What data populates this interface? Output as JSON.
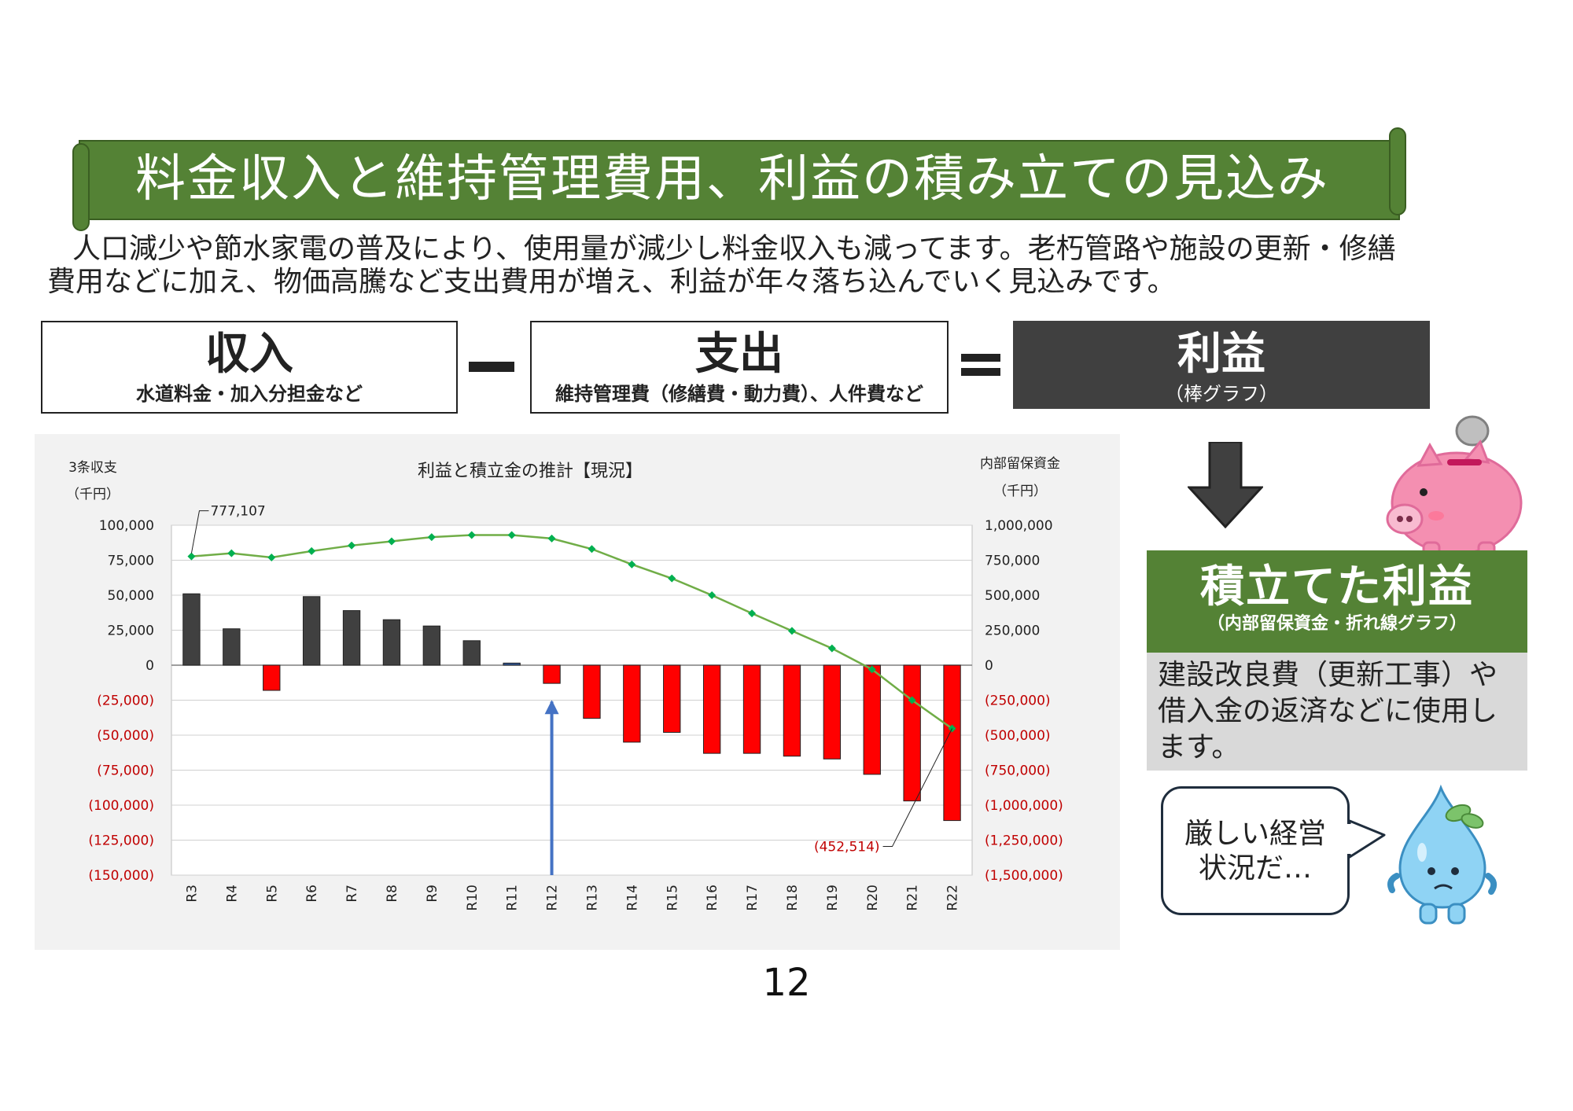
{
  "banner": {
    "title": "料金収入と維持管理費用、利益の積み立ての見込み"
  },
  "lead": {
    "line1": "人口減少や節水家電の普及により、使用量が減少し料金収入も減ってます。老朽管路や施設の更新・修繕",
    "line2": "費用などに加え、物価高騰など支出費用が増え、利益が年々落ち込んでいく見込みです。"
  },
  "equation": {
    "income": {
      "title": "収入",
      "sub": "水道料金・加入分担金など"
    },
    "expense": {
      "title": "支出",
      "sub": "維持管理費（修繕費・動力費）、人件費など"
    },
    "profit": {
      "title": "利益",
      "sub": "（棒グラフ）"
    }
  },
  "reserve": {
    "title": "積立てた利益",
    "sub": "（内部留保資金・折れ線グラフ）",
    "desc": "建設改良費（更新工事）や借入金の返済などに使用します。"
  },
  "bubble": {
    "line1": "厳しい経営",
    "line2": "状況だ…"
  },
  "page_number": "12",
  "colors": {
    "green": "#548235",
    "dark": "#404040",
    "negative_bar": "#ff0000",
    "positive_bar": "#404040",
    "line": "#70ad47",
    "marker": "#00b050",
    "arrow": "#4472c4"
  },
  "chart_data": {
    "type": "bar",
    "title": "利益と積立金の推計【現況】",
    "left_axis_label_1": "3条収支",
    "left_axis_label_2": "（千円）",
    "right_axis_label_1": "内部留保資金",
    "right_axis_label_2": "（千円）",
    "categories": [
      "R3",
      "R4",
      "R5",
      "R6",
      "R7",
      "R8",
      "R9",
      "R10",
      "R11",
      "R12",
      "R13",
      "R14",
      "R15",
      "R16",
      "R17",
      "R18",
      "R19",
      "R20",
      "R21",
      "R22"
    ],
    "y_left": {
      "min": -150000,
      "max": 100000,
      "ticks": [
        "100,000",
        "75,000",
        "50,000",
        "25,000",
        "0",
        "(25,000)",
        "(50,000)",
        "(75,000)",
        "(100,000)",
        "(125,000)",
        "(150,000)"
      ]
    },
    "y_right": {
      "min": -1500000,
      "max": 1000000,
      "ticks": [
        "1,000,000",
        "750,000",
        "500,000",
        "250,000",
        "0",
        "(250,000)",
        "(500,000)",
        "(750,000)",
        "(1,000,000)",
        "(1,250,000)",
        "(1,500,000)"
      ]
    },
    "series": [
      {
        "axis": "left",
        "kind": "bar",
        "values": [
          51000,
          26000,
          -18000,
          49000,
          39000,
          32500,
          28000,
          17500,
          1500,
          -13000,
          -38000,
          -55000,
          -48000,
          -63000,
          -63000,
          -65000,
          -67000,
          -78000,
          -97000,
          -111000
        ]
      },
      {
        "axis": "right",
        "kind": "line",
        "values": [
          777107,
          800000,
          770000,
          815000,
          855000,
          885000,
          915000,
          930000,
          930000,
          905000,
          830000,
          720000,
          620000,
          500000,
          370000,
          245000,
          120000,
          -30000,
          -250000,
          -452514
        ]
      }
    ],
    "annotations": {
      "first": "777,107",
      "last": "(452,514)"
    },
    "grid": true,
    "current_marker_category": "R12"
  }
}
